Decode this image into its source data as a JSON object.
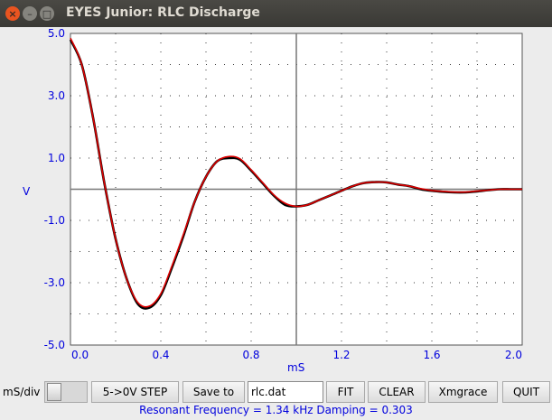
{
  "window": {
    "title": "EYES Junior: RLC Discharge"
  },
  "chart_data": {
    "type": "line",
    "xlabel": "mS",
    "ylabel": "V",
    "xlim": [
      0,
      2.0
    ],
    "ylim": [
      -5.0,
      5.0
    ],
    "x_ticks": [
      "0.0",
      "0.4",
      "0.8",
      "1.2",
      "1.6",
      "2.0"
    ],
    "y_ticks": [
      "5.0",
      "3.0",
      "1.0",
      "-1.0",
      "-3.0",
      "-5.0"
    ],
    "grid": "dotted",
    "series": [
      {
        "role": "measured",
        "color": "#000000",
        "x": [
          0,
          0.05,
          0.1,
          0.15,
          0.2,
          0.25,
          0.3,
          0.35,
          0.4,
          0.45,
          0.5,
          0.55,
          0.6,
          0.65,
          0.7,
          0.75,
          0.8,
          0.85,
          0.9,
          0.95,
          1.0,
          1.05,
          1.1,
          1.15,
          1.2,
          1.25,
          1.3,
          1.35,
          1.4,
          1.45,
          1.5,
          1.55,
          1.6,
          1.65,
          1.7,
          1.75,
          1.8,
          1.85,
          1.9,
          1.95,
          2.0
        ],
        "y": [
          4.8,
          4.0,
          2.3,
          0.2,
          -1.6,
          -2.9,
          -3.7,
          -3.8,
          -3.4,
          -2.5,
          -1.5,
          -0.4,
          0.4,
          0.9,
          1.0,
          0.95,
          0.6,
          0.2,
          -0.2,
          -0.5,
          -0.55,
          -0.5,
          -0.35,
          -0.2,
          -0.05,
          0.1,
          0.2,
          0.23,
          0.22,
          0.15,
          0.1,
          0.0,
          -0.05,
          -0.08,
          -0.1,
          -0.1,
          -0.07,
          -0.03,
          0.0,
          0.0,
          0.0
        ]
      },
      {
        "role": "fit",
        "color": "#dd0000",
        "x": [
          0,
          0.05,
          0.1,
          0.15,
          0.2,
          0.25,
          0.3,
          0.35,
          0.4,
          0.45,
          0.5,
          0.55,
          0.6,
          0.65,
          0.7,
          0.75,
          0.8,
          0.85,
          0.9,
          0.95,
          1.0,
          1.05,
          1.1,
          1.15,
          1.2,
          1.25,
          1.3,
          1.35,
          1.4,
          1.45,
          1.5,
          1.55,
          1.6,
          1.65,
          1.7,
          1.75,
          1.8,
          1.85,
          1.9,
          1.95,
          2.0
        ],
        "y": [
          4.85,
          4.0,
          2.3,
          0.2,
          -1.6,
          -2.9,
          -3.65,
          -3.75,
          -3.35,
          -2.45,
          -1.45,
          -0.4,
          0.4,
          0.9,
          1.05,
          0.98,
          0.62,
          0.22,
          -0.18,
          -0.45,
          -0.55,
          -0.5,
          -0.35,
          -0.2,
          -0.05,
          0.1,
          0.2,
          0.23,
          0.22,
          0.15,
          0.1,
          0.02,
          -0.04,
          -0.07,
          -0.09,
          -0.09,
          -0.06,
          -0.03,
          0.0,
          0.0,
          0.0
        ]
      }
    ]
  },
  "controls": {
    "ms_div_label": "mS/div",
    "step_button": "5->0V STEP",
    "save_button": "Save to",
    "filename": "rlc.dat",
    "fit_button": "FIT",
    "clear_button": "CLEAR",
    "xmgrace_button": "Xmgrace",
    "quit_button": "QUIT"
  },
  "status": "Resonant Frequency =  1.34 kHz Damping = 0.303"
}
